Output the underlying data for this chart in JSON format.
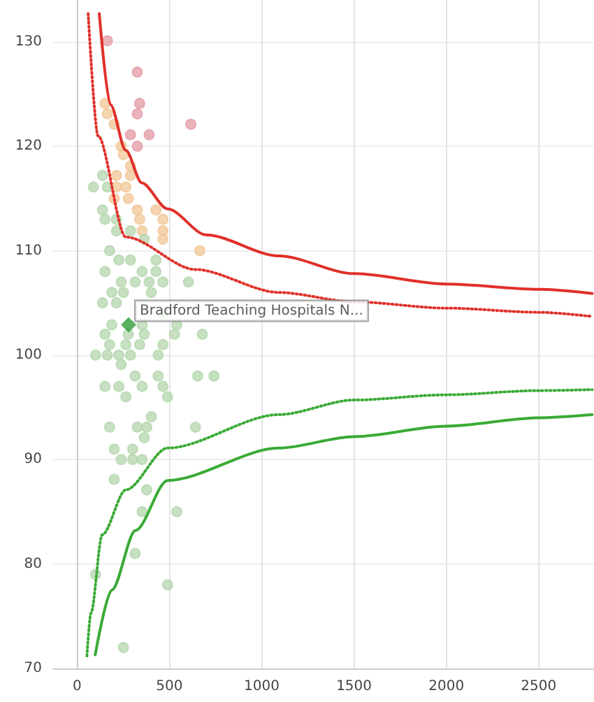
{
  "chart_data": {
    "type": "scatter",
    "xlim": [
      -130,
      2800
    ],
    "xticks": [
      0,
      500,
      1000,
      1500,
      2000,
      2500
    ],
    "ylim": [
      70,
      134
    ],
    "yticks": [
      70,
      80,
      90,
      100,
      110,
      120,
      130
    ],
    "grid": true,
    "marker": "circle",
    "series": [
      {
        "color": "#e39aa6",
        "x": [
          164,
          326,
          339,
          326,
          616,
          289,
          390,
          326
        ],
        "values": [
          130.1,
          127.1,
          124.1,
          123.1,
          122.1,
          121.1,
          121.1,
          120.0
        ]
      },
      {
        "color": "#f2c596",
        "x": [
          151,
          164,
          201,
          239,
          251,
          289,
          213,
          289,
          213,
          264,
          201,
          277,
          326,
          427,
          339,
          465,
          352,
          465,
          465,
          665
        ],
        "values": [
          124.1,
          123.1,
          122.1,
          120.0,
          119.2,
          118.1,
          117.2,
          117.2,
          116.1,
          116.1,
          115.0,
          115.0,
          113.9,
          113.9,
          113.0,
          113.0,
          111.9,
          111.9,
          111.1,
          110.0
        ]
      },
      {
        "color": "#b3d5ac",
        "x": [
          138,
          88,
          164,
          138,
          151,
          213,
          213,
          289,
          364,
          176,
          226,
          289,
          427,
          151,
          352,
          427,
          239,
          314,
          390,
          465,
          603,
          188,
          251,
          402,
          138,
          213,
          465,
          188,
          352,
          540,
          151,
          277,
          364,
          528,
          678,
          176,
          264,
          339,
          465,
          100,
          164,
          226,
          289,
          439,
          239,
          314,
          439,
          653,
          741,
          151,
          226,
          352,
          465,
          264,
          490,
          402,
          176,
          326,
          377,
          641,
          364,
          201,
          301,
          239,
          301,
          352,
          201,
          377,
          352,
          540,
          314,
          100,
          490,
          251
        ],
        "values": [
          117.2,
          116.1,
          116.1,
          113.9,
          113.0,
          113.0,
          111.9,
          111.9,
          111.1,
          110.0,
          109.1,
          109.1,
          109.1,
          108.0,
          108.0,
          108.0,
          107.0,
          107.0,
          107.0,
          107.0,
          107.0,
          106.0,
          106.0,
          106.0,
          105.0,
          105.0,
          104.0,
          102.9,
          102.9,
          102.9,
          102.0,
          102.0,
          102.0,
          102.0,
          102.0,
          101.0,
          101.0,
          101.0,
          101.0,
          100.0,
          100.0,
          100.0,
          100.0,
          100.0,
          99.1,
          98.0,
          98.0,
          98.0,
          98.0,
          97.0,
          97.0,
          97.0,
          97.0,
          96.0,
          96.0,
          94.1,
          93.1,
          93.1,
          93.1,
          93.1,
          92.1,
          91.0,
          91.0,
          90.0,
          90.0,
          90.0,
          88.1,
          87.1,
          85.0,
          85.0,
          81.0,
          79.0,
          78.0,
          72.0
        ]
      },
      {
        "color": "#2e9c3a",
        "marker": "diamond",
        "x": [
          279
        ],
        "values": [
          102.9
        ]
      },
      {
        "type": "line",
        "color": "#e0302a",
        "line_style": "solid",
        "marker": "none",
        "x": [
          120,
          180,
          264,
          350,
          490,
          700,
          1093,
          1500,
          2000,
          2500,
          2790
        ],
        "values": [
          132.7,
          124,
          119.6,
          116.5,
          114,
          111.5,
          109.5,
          107.8,
          106.8,
          106.3,
          105.9
        ]
      },
      {
        "type": "line",
        "color": "#e0302a",
        "line_style": "dotted",
        "marker": "none",
        "x": [
          60,
          113,
          264,
          640,
          1093,
          1500,
          2000,
          2500,
          2790
        ],
        "values": [
          132.7,
          121,
          111.3,
          108.2,
          106,
          105.1,
          104.5,
          104.1,
          103.7
        ]
      },
      {
        "type": "line",
        "color": "#3aaa35",
        "line_style": "dotted",
        "marker": "none",
        "x": [
          53,
          75,
          136,
          264,
          490,
          1093,
          1500,
          2000,
          2500,
          2790
        ],
        "values": [
          71.2,
          75.3,
          82.8,
          87.1,
          91.1,
          94.3,
          95.7,
          96.2,
          96.6,
          96.7
        ]
      },
      {
        "type": "line",
        "color": "#3aaa35",
        "line_style": "solid",
        "marker": "none",
        "x": [
          98,
          188,
          316,
          490,
          1093,
          1500,
          2000,
          2500,
          2790
        ],
        "values": [
          71.3,
          77.5,
          83.2,
          88,
          91.1,
          92.2,
          93.2,
          94,
          94.3
        ]
      }
    ],
    "annotations": [
      {
        "text": "Bradford Teaching Hospitals N...",
        "x": 279,
        "y": 102.9
      }
    ]
  }
}
